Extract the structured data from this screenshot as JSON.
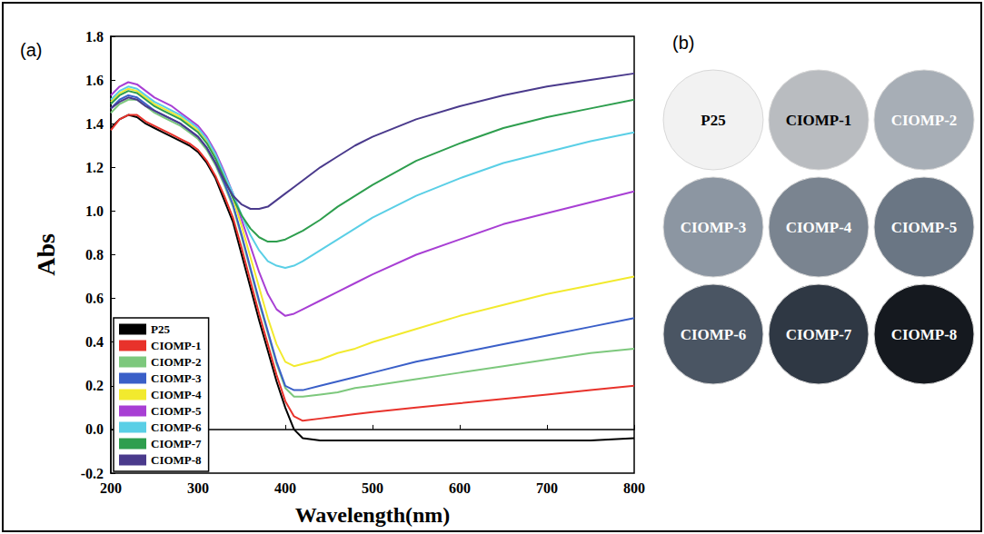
{
  "chart_data": {
    "type": "line",
    "panel": "(a)",
    "xlabel": "Wavelength(nm)",
    "ylabel": "Abs",
    "xlim": [
      200,
      800
    ],
    "xticks": [
      200,
      300,
      400,
      500,
      600,
      700,
      800
    ],
    "ylim": [
      -0.2,
      1.8
    ],
    "yticks": [
      -0.2,
      {
        "value": 0,
        "label": "0.0"
      },
      0.2,
      0.4,
      0.6,
      0.8,
      {
        "value": 1,
        "label": "1.0"
      },
      1.2,
      1.4,
      1.6,
      1.8
    ],
    "grid": false,
    "legend": "lower left",
    "x": [
      200,
      210,
      220,
      230,
      240,
      250,
      260,
      270,
      280,
      290,
      300,
      310,
      320,
      330,
      340,
      350,
      360,
      370,
      380,
      390,
      400,
      410,
      420,
      440,
      460,
      480,
      500,
      550,
      600,
      650,
      700,
      750,
      800
    ],
    "series": [
      {
        "name": "P25",
        "color": "#000000",
        "values": [
          1.38,
          1.42,
          1.44,
          1.43,
          1.4,
          1.38,
          1.36,
          1.34,
          1.32,
          1.3,
          1.27,
          1.22,
          1.15,
          1.05,
          0.95,
          0.8,
          0.65,
          0.5,
          0.36,
          0.22,
          0.1,
          0.0,
          -0.04,
          -0.05,
          -0.05,
          -0.05,
          -0.05,
          -0.05,
          -0.05,
          -0.05,
          -0.05,
          -0.05,
          -0.04
        ]
      },
      {
        "name": "CIOMP-1",
        "color": "#e8322b",
        "values": [
          1.37,
          1.42,
          1.44,
          1.44,
          1.41,
          1.39,
          1.37,
          1.35,
          1.33,
          1.31,
          1.28,
          1.23,
          1.16,
          1.07,
          0.97,
          0.83,
          0.68,
          0.53,
          0.39,
          0.25,
          0.13,
          0.06,
          0.04,
          0.05,
          0.06,
          0.07,
          0.08,
          0.1,
          0.12,
          0.14,
          0.16,
          0.18,
          0.2
        ]
      },
      {
        "name": "CIOMP-2",
        "color": "#7dc87d",
        "values": [
          1.45,
          1.49,
          1.51,
          1.51,
          1.48,
          1.45,
          1.43,
          1.41,
          1.39,
          1.36,
          1.33,
          1.28,
          1.21,
          1.12,
          1.02,
          0.88,
          0.73,
          0.58,
          0.44,
          0.3,
          0.19,
          0.15,
          0.15,
          0.16,
          0.17,
          0.19,
          0.2,
          0.23,
          0.26,
          0.29,
          0.32,
          0.35,
          0.37
        ]
      },
      {
        "name": "CIOMP-3",
        "color": "#3a5fc8",
        "values": [
          1.47,
          1.51,
          1.53,
          1.52,
          1.49,
          1.46,
          1.44,
          1.42,
          1.4,
          1.37,
          1.34,
          1.29,
          1.22,
          1.13,
          1.03,
          0.89,
          0.74,
          0.59,
          0.45,
          0.31,
          0.2,
          0.18,
          0.18,
          0.2,
          0.22,
          0.24,
          0.26,
          0.31,
          0.35,
          0.39,
          0.43,
          0.47,
          0.51
        ]
      },
      {
        "name": "CIOMP-4",
        "color": "#f2ea2e",
        "values": [
          1.5,
          1.54,
          1.56,
          1.55,
          1.52,
          1.49,
          1.47,
          1.45,
          1.43,
          1.4,
          1.37,
          1.32,
          1.25,
          1.16,
          1.06,
          0.93,
          0.79,
          0.65,
          0.51,
          0.39,
          0.31,
          0.29,
          0.3,
          0.32,
          0.35,
          0.37,
          0.4,
          0.46,
          0.52,
          0.57,
          0.62,
          0.66,
          0.7
        ]
      },
      {
        "name": "CIOMP-5",
        "color": "#a83fd4",
        "values": [
          1.53,
          1.57,
          1.59,
          1.58,
          1.55,
          1.52,
          1.5,
          1.48,
          1.45,
          1.42,
          1.39,
          1.34,
          1.27,
          1.18,
          1.08,
          0.96,
          0.84,
          0.72,
          0.62,
          0.55,
          0.52,
          0.53,
          0.55,
          0.59,
          0.63,
          0.67,
          0.71,
          0.8,
          0.87,
          0.94,
          0.99,
          1.04,
          1.09
        ]
      },
      {
        "name": "CIOMP-6",
        "color": "#5acfe6",
        "values": [
          1.51,
          1.55,
          1.57,
          1.56,
          1.53,
          1.5,
          1.48,
          1.46,
          1.44,
          1.41,
          1.38,
          1.33,
          1.26,
          1.17,
          1.08,
          0.98,
          0.89,
          0.82,
          0.77,
          0.75,
          0.74,
          0.75,
          0.77,
          0.82,
          0.87,
          0.92,
          0.97,
          1.07,
          1.15,
          1.22,
          1.27,
          1.32,
          1.36
        ]
      },
      {
        "name": "CIOMP-7",
        "color": "#2e9e4e",
        "values": [
          1.49,
          1.53,
          1.55,
          1.54,
          1.51,
          1.48,
          1.46,
          1.44,
          1.42,
          1.39,
          1.36,
          1.31,
          1.24,
          1.15,
          1.06,
          0.98,
          0.92,
          0.88,
          0.86,
          0.86,
          0.87,
          0.89,
          0.91,
          0.96,
          1.02,
          1.07,
          1.12,
          1.23,
          1.31,
          1.38,
          1.43,
          1.47,
          1.51
        ]
      },
      {
        "name": "CIOMP-8",
        "color": "#4a3a8c",
        "values": [
          1.47,
          1.5,
          1.52,
          1.51,
          1.48,
          1.46,
          1.44,
          1.42,
          1.4,
          1.37,
          1.34,
          1.29,
          1.22,
          1.14,
          1.07,
          1.03,
          1.01,
          1.01,
          1.02,
          1.05,
          1.08,
          1.11,
          1.14,
          1.2,
          1.25,
          1.3,
          1.34,
          1.42,
          1.48,
          1.53,
          1.57,
          1.6,
          1.63
        ]
      }
    ]
  },
  "image_panel": {
    "panel": "(b)",
    "samples": [
      {
        "label": "P25",
        "color": "#f2f2f2"
      },
      {
        "label": "CIOMP-1",
        "color": "#b9bcc0"
      },
      {
        "label": "CIOMP-2",
        "color": "#a7aeb6"
      },
      {
        "label": "CIOMP-3",
        "color": "#8c96a2"
      },
      {
        "label": "CIOMP-4",
        "color": "#7a8490"
      },
      {
        "label": "CIOMP-5",
        "color": "#6a7684"
      },
      {
        "label": "CIOMP-6",
        "color": "#4a5563"
      },
      {
        "label": "CIOMP-7",
        "color": "#2f3844"
      },
      {
        "label": "CIOMP-8",
        "color": "#15191f"
      }
    ]
  }
}
